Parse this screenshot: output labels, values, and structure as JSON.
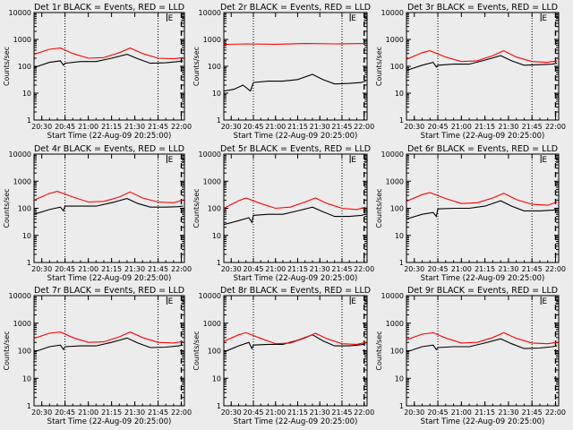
{
  "chart_data": [
    {
      "type": "line",
      "title": "Det 1r BLACK = Events, RED = LLD",
      "xlabel": "Start Time (22-Aug-09 20:25:00)",
      "ylabel": "Counts/sec",
      "yscale": "log",
      "ylim": [
        1,
        10000
      ],
      "x_ticks": [
        "20:30",
        "20:45",
        "21:00",
        "21:15",
        "21:30",
        "21:45",
        "22:00"
      ],
      "y_ticks": [
        "1",
        "10",
        "100",
        "1000",
        "10000"
      ],
      "markers": [
        "E",
        "S"
      ],
      "series": [
        {
          "color": "#000000",
          "x": [
            "20:25",
            "20:35",
            "20:42",
            "20:44",
            "20:45",
            "20:55",
            "21:05",
            "21:15",
            "21:25",
            "21:32",
            "21:40",
            "21:50",
            "21:58",
            "22:01"
          ],
          "y": [
            90,
            140,
            160,
            110,
            130,
            150,
            150,
            200,
            280,
            190,
            130,
            135,
            150,
            160
          ]
        },
        {
          "color": "#ff0000",
          "x": [
            "20:25",
            "20:35",
            "20:42",
            "20:50",
            "21:00",
            "21:10",
            "21:20",
            "21:27",
            "21:35",
            "21:45",
            "21:55",
            "22:01"
          ],
          "y": [
            280,
            430,
            480,
            300,
            200,
            210,
            320,
            480,
            300,
            200,
            190,
            210
          ]
        }
      ]
    },
    {
      "type": "line",
      "title": "Det 2r BLACK = Events, RED = LLD",
      "xlabel": "Start Time (22-Aug-09 20:25:00)",
      "ylabel": "Counts/sec",
      "yscale": "log",
      "ylim": [
        1,
        10000
      ],
      "x_ticks": [
        "20:30",
        "20:45",
        "21:00",
        "21:15",
        "21:30",
        "21:45",
        "22:00"
      ],
      "y_ticks": [
        "1",
        "10",
        "100",
        "1000",
        "10000"
      ],
      "markers": [
        "E",
        "S"
      ],
      "series": [
        {
          "color": "#000000",
          "x": [
            "20:25",
            "20:32",
            "20:38",
            "20:43",
            "20:45",
            "20:55",
            "21:05",
            "21:15",
            "21:25",
            "21:32",
            "21:40",
            "21:50",
            "21:58",
            "22:01"
          ],
          "y": [
            12,
            14,
            20,
            12,
            25,
            28,
            28,
            32,
            50,
            32,
            22,
            23,
            25,
            28
          ]
        },
        {
          "color": "#ff0000",
          "x": [
            "20:25",
            "20:40",
            "21:00",
            "21:20",
            "21:40",
            "22:01"
          ],
          "y": [
            650,
            680,
            660,
            700,
            680,
            700
          ]
        }
      ]
    },
    {
      "type": "line",
      "title": "Det 3r BLACK = Events, RED = LLD",
      "xlabel": "Start Time (22-Aug-09 20:25:00)",
      "ylabel": "Counts/sec",
      "yscale": "log",
      "ylim": [
        1,
        10000
      ],
      "x_ticks": [
        "20:30",
        "20:45",
        "21:00",
        "21:15",
        "21:30",
        "21:45",
        "22:00"
      ],
      "y_ticks": [
        "1",
        "10",
        "100",
        "1000",
        "10000"
      ],
      "markers": [
        "E",
        "S"
      ],
      "series": [
        {
          "color": "#000000",
          "x": [
            "20:25",
            "20:35",
            "20:42",
            "20:44",
            "20:45",
            "20:55",
            "21:05",
            "21:15",
            "21:25",
            "21:32",
            "21:40",
            "21:50",
            "21:58",
            "22:01"
          ],
          "y": [
            70,
            110,
            140,
            95,
            110,
            120,
            120,
            170,
            250,
            160,
            110,
            115,
            120,
            130
          ]
        },
        {
          "color": "#ff0000",
          "x": [
            "20:25",
            "20:35",
            "20:40",
            "20:50",
            "21:00",
            "21:10",
            "21:20",
            "21:27",
            "21:35",
            "21:45",
            "21:55",
            "22:01"
          ],
          "y": [
            180,
            320,
            380,
            220,
            150,
            160,
            250,
            380,
            220,
            150,
            140,
            160
          ]
        }
      ]
    },
    {
      "type": "line",
      "title": "Det 4r BLACK = Events, RED = LLD",
      "xlabel": "Start Time (22-Aug-09 20:25:00)",
      "ylabel": "Counts/sec",
      "yscale": "log",
      "ylim": [
        1,
        10000
      ],
      "x_ticks": [
        "20:30",
        "20:45",
        "21:00",
        "21:15",
        "21:30",
        "21:45",
        "22:00"
      ],
      "y_ticks": [
        "1",
        "10",
        "100",
        "1000",
        "10000"
      ],
      "markers": [
        "E",
        "S"
      ],
      "series": [
        {
          "color": "#000000",
          "x": [
            "20:25",
            "20:35",
            "20:42",
            "20:44",
            "20:45",
            "20:55",
            "21:05",
            "21:15",
            "21:25",
            "21:32",
            "21:40",
            "21:50",
            "21:58",
            "22:01"
          ],
          "y": [
            60,
            90,
            110,
            80,
            120,
            120,
            120,
            160,
            230,
            150,
            110,
            110,
            115,
            120
          ]
        },
        {
          "color": "#ff0000",
          "x": [
            "20:25",
            "20:35",
            "20:40",
            "20:50",
            "21:00",
            "21:10",
            "21:20",
            "21:27",
            "21:35",
            "21:45",
            "21:55",
            "22:01"
          ],
          "y": [
            200,
            350,
            420,
            260,
            170,
            180,
            260,
            400,
            240,
            170,
            160,
            200
          ]
        }
      ]
    },
    {
      "type": "line",
      "title": "Det 5r BLACK = Events, RED = LLD",
      "xlabel": "Start Time (22-Aug-09 20:25:00)",
      "ylabel": "Counts/sec",
      "yscale": "log",
      "ylim": [
        1,
        10000
      ],
      "x_ticks": [
        "20:30",
        "20:45",
        "21:00",
        "21:15",
        "21:30",
        "21:45",
        "22:00"
      ],
      "y_ticks": [
        "1",
        "10",
        "100",
        "1000",
        "10000"
      ],
      "markers": [
        "E",
        "S"
      ],
      "series": [
        {
          "color": "#000000",
          "x": [
            "20:25",
            "20:35",
            "20:42",
            "20:44",
            "20:45",
            "20:55",
            "21:05",
            "21:15",
            "21:25",
            "21:32",
            "21:40",
            "21:50",
            "21:58",
            "22:01"
          ],
          "y": [
            25,
            35,
            45,
            30,
            55,
            60,
            60,
            80,
            110,
            75,
            50,
            50,
            55,
            60
          ]
        },
        {
          "color": "#ff0000",
          "x": [
            "20:25",
            "20:35",
            "20:40",
            "20:50",
            "21:00",
            "21:10",
            "21:20",
            "21:27",
            "21:35",
            "21:45",
            "21:55",
            "22:01"
          ],
          "y": [
            100,
            190,
            240,
            150,
            100,
            110,
            170,
            240,
            150,
            100,
            90,
            110
          ]
        }
      ]
    },
    {
      "type": "line",
      "title": "Det 6r BLACK = Events, RED = LLD",
      "xlabel": "Start Time (22-Aug-09 20:25:00)",
      "ylabel": "Counts/sec",
      "yscale": "log",
      "ylim": [
        1,
        10000
      ],
      "x_ticks": [
        "20:30",
        "20:45",
        "21:00",
        "21:15",
        "21:30",
        "21:45",
        "22:00"
      ],
      "y_ticks": [
        "1",
        "10",
        "100",
        "1000",
        "10000"
      ],
      "markers": [
        "E",
        "S"
      ],
      "series": [
        {
          "color": "#000000",
          "x": [
            "20:25",
            "20:35",
            "20:42",
            "20:44",
            "20:45",
            "20:55",
            "21:05",
            "21:15",
            "21:25",
            "21:32",
            "21:40",
            "21:50",
            "21:58",
            "22:01"
          ],
          "y": [
            40,
            60,
            70,
            50,
            95,
            100,
            100,
            120,
            190,
            120,
            80,
            80,
            85,
            90
          ]
        },
        {
          "color": "#ff0000",
          "x": [
            "20:25",
            "20:35",
            "20:40",
            "20:50",
            "21:00",
            "21:10",
            "21:20",
            "21:27",
            "21:35",
            "21:45",
            "21:55",
            "22:01"
          ],
          "y": [
            180,
            320,
            380,
            230,
            150,
            160,
            240,
            360,
            210,
            140,
            130,
            170
          ]
        }
      ]
    },
    {
      "type": "line",
      "title": "Det 7r BLACK = Events, RED = LLD",
      "xlabel": "Start Time (22-Aug-09 20:25:00)",
      "ylabel": "Counts/sec",
      "yscale": "log",
      "ylim": [
        1,
        10000
      ],
      "x_ticks": [
        "20:30",
        "20:45",
        "21:00",
        "21:15",
        "21:30",
        "21:45",
        "22:00"
      ],
      "y_ticks": [
        "1",
        "10",
        "100",
        "1000",
        "10000"
      ],
      "markers": [
        "E",
        "S"
      ],
      "series": [
        {
          "color": "#000000",
          "x": [
            "20:25",
            "20:35",
            "20:42",
            "20:44",
            "20:45",
            "20:55",
            "21:05",
            "21:15",
            "21:25",
            "21:32",
            "21:40",
            "21:50",
            "21:58",
            "22:01"
          ],
          "y": [
            90,
            140,
            160,
            110,
            140,
            150,
            150,
            200,
            290,
            190,
            130,
            135,
            150,
            160
          ]
        },
        {
          "color": "#ff0000",
          "x": [
            "20:25",
            "20:35",
            "20:42",
            "20:50",
            "21:00",
            "21:10",
            "21:20",
            "21:27",
            "21:35",
            "21:45",
            "21:55",
            "22:01"
          ],
          "y": [
            280,
            430,
            480,
            300,
            200,
            210,
            320,
            480,
            300,
            200,
            190,
            220
          ]
        }
      ]
    },
    {
      "type": "line",
      "title": "Det 8r BLACK = Events, RED = LLD",
      "xlabel": "Start Time (22-Aug-09 20:25:00)",
      "ylabel": "Counts/sec",
      "yscale": "log",
      "ylim": [
        1,
        10000
      ],
      "x_ticks": [
        "20:30",
        "20:45",
        "21:00",
        "21:15",
        "21:30",
        "21:45",
        "22:00"
      ],
      "y_ticks": [
        "1",
        "10",
        "100",
        "1000",
        "10000"
      ],
      "markers": [
        "E",
        "S"
      ],
      "series": [
        {
          "color": "#000000",
          "x": [
            "20:25",
            "20:35",
            "20:42",
            "20:44",
            "20:45",
            "20:55",
            "21:05",
            "21:15",
            "21:25",
            "21:32",
            "21:40",
            "21:50",
            "21:58",
            "22:01"
          ],
          "y": [
            90,
            150,
            200,
            120,
            160,
            170,
            170,
            240,
            380,
            230,
            150,
            150,
            165,
            180
          ]
        },
        {
          "color": "#ff0000",
          "x": [
            "20:25",
            "20:35",
            "20:40",
            "20:50",
            "21:00",
            "21:10",
            "21:20",
            "21:27",
            "21:35",
            "21:45",
            "21:55",
            "22:01"
          ],
          "y": [
            220,
            380,
            450,
            280,
            180,
            190,
            290,
            430,
            270,
            180,
            170,
            200
          ]
        }
      ]
    },
    {
      "type": "line",
      "title": "Det 9r BLACK = Events, RED = LLD",
      "xlabel": "Start Time (22-Aug-09 20:25:00)",
      "ylabel": "Counts/sec",
      "yscale": "log",
      "ylim": [
        1,
        10000
      ],
      "x_ticks": [
        "20:30",
        "20:45",
        "21:00",
        "21:15",
        "21:30",
        "21:45",
        "22:00"
      ],
      "y_ticks": [
        "1",
        "10",
        "100",
        "1000",
        "10000"
      ],
      "markers": [
        "E",
        "S"
      ],
      "series": [
        {
          "color": "#000000",
          "x": [
            "20:25",
            "20:35",
            "20:42",
            "20:44",
            "20:45",
            "20:55",
            "21:05",
            "21:15",
            "21:25",
            "21:32",
            "21:40",
            "21:50",
            "21:58",
            "22:01"
          ],
          "y": [
            90,
            140,
            160,
            110,
            130,
            140,
            140,
            190,
            270,
            180,
            120,
            125,
            140,
            150
          ]
        },
        {
          "color": "#ff0000",
          "x": [
            "20:25",
            "20:35",
            "20:42",
            "20:50",
            "21:00",
            "21:10",
            "21:20",
            "21:27",
            "21:35",
            "21:45",
            "21:55",
            "22:01"
          ],
          "y": [
            250,
            400,
            450,
            290,
            190,
            200,
            300,
            450,
            280,
            190,
            180,
            200
          ]
        }
      ]
    }
  ]
}
